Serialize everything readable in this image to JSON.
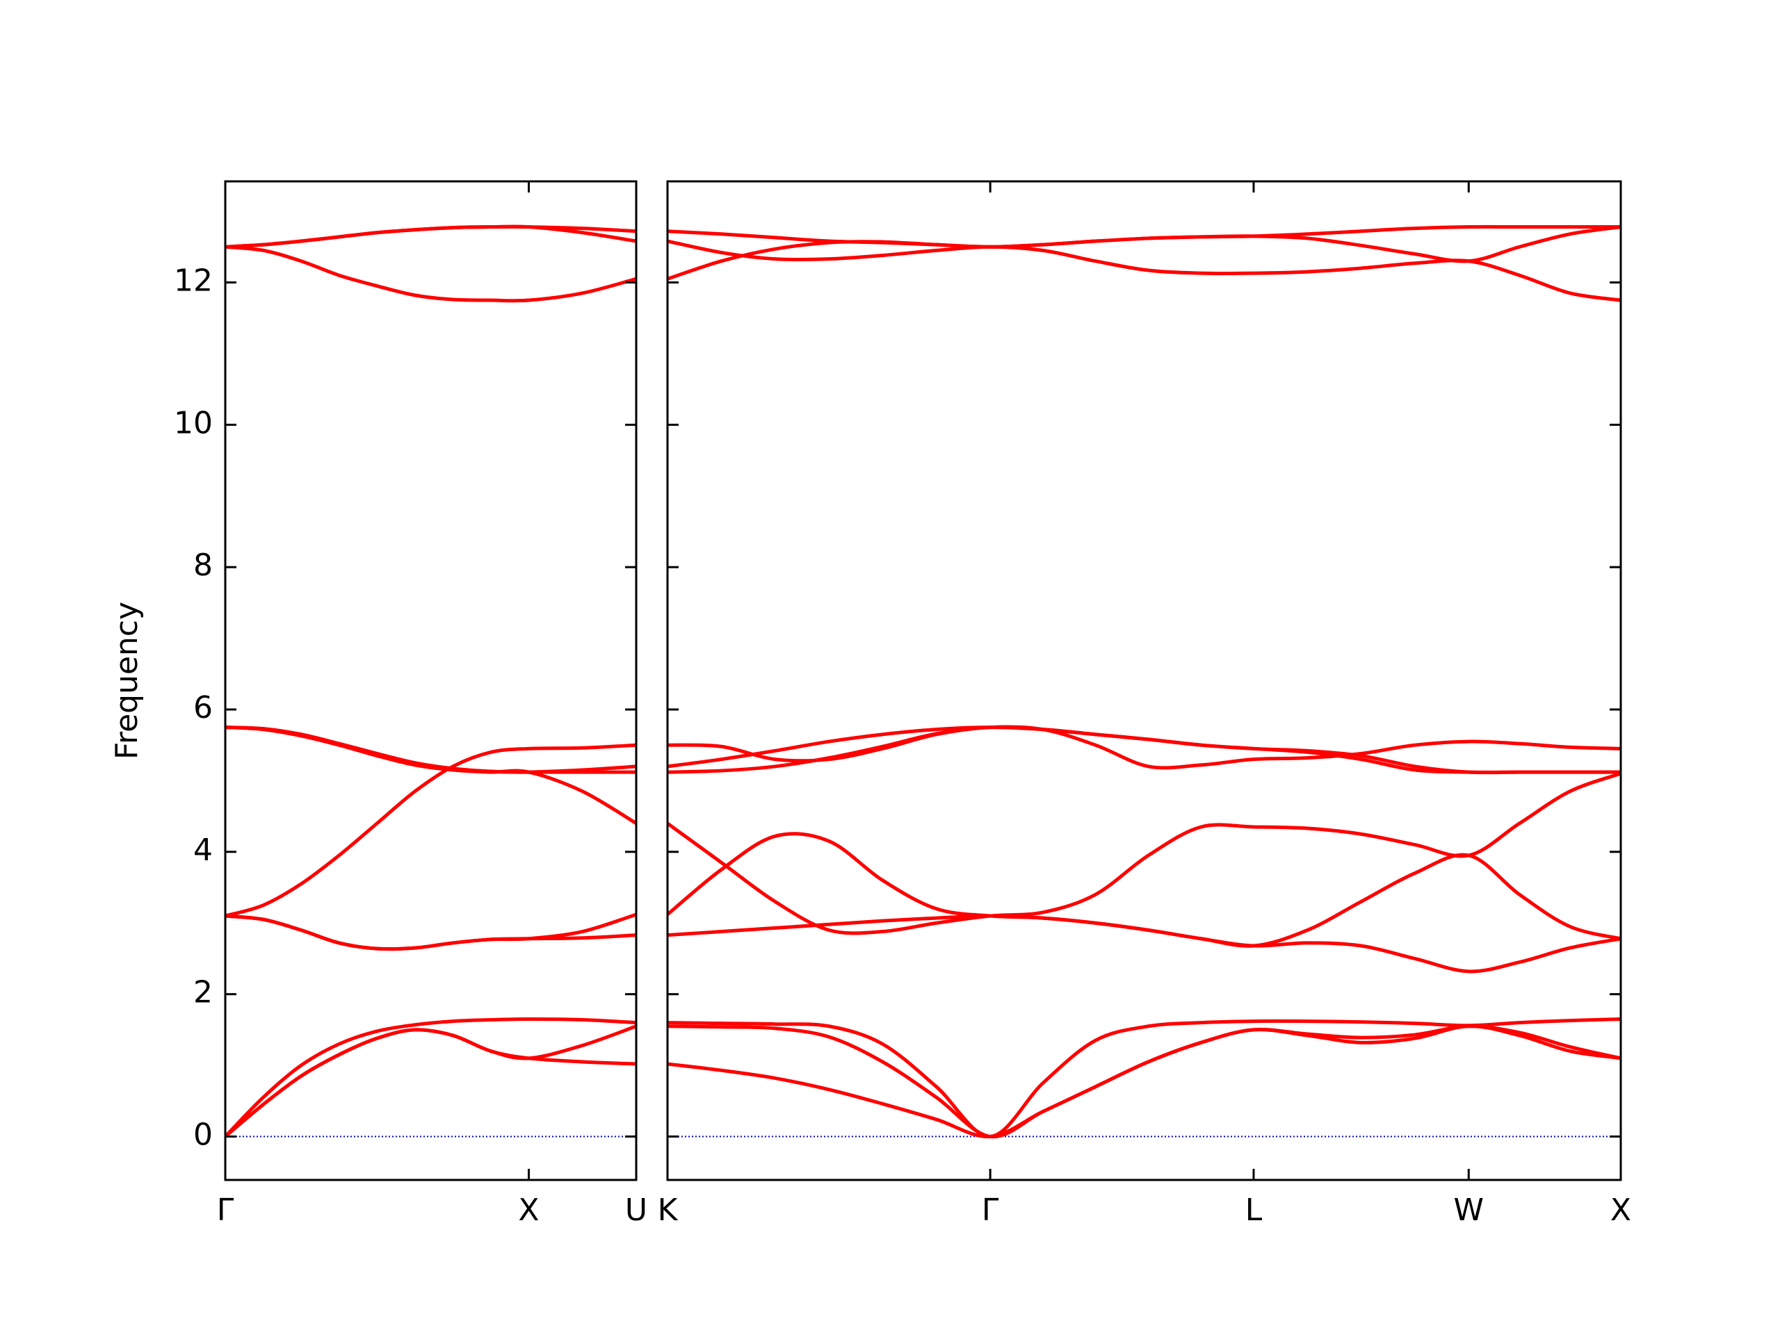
{
  "chart_data": [
    {
      "type": "line",
      "ylabel": "Frequency",
      "color": "#ff0000",
      "x": [
        0,
        0.125,
        0.25,
        0.375,
        0.5,
        0.625,
        0.75,
        0.875,
        1,
        1.177,
        1.354
      ],
      "xlim": [
        0,
        1.354
      ],
      "xticks": [
        {
          "value": 0,
          "label": "Γ"
        },
        {
          "value": 1,
          "label": "X"
        },
        {
          "value": 1.354,
          "label": "U"
        }
      ],
      "ylim": [
        -0.61,
        13.42
      ],
      "yticks": [
        0,
        2,
        4,
        6,
        8,
        10,
        12
      ],
      "ytick_labels": true,
      "zero_line": {
        "y": 0,
        "color": "#0000cc"
      },
      "series": [
        {
          "values": [
            0,
            0.45,
            0.85,
            1.15,
            1.38,
            1.5,
            1.42,
            1.2,
            1.1,
            1.05,
            1.02
          ]
        },
        {
          "values": [
            0,
            0.45,
            0.85,
            1.15,
            1.38,
            1.5,
            1.42,
            1.2,
            1.1,
            1.28,
            1.55
          ]
        },
        {
          "values": [
            0,
            0.55,
            1.0,
            1.3,
            1.48,
            1.57,
            1.62,
            1.64,
            1.65,
            1.64,
            1.6
          ]
        },
        {
          "values": [
            3.1,
            3.05,
            2.9,
            2.72,
            2.64,
            2.65,
            2.72,
            2.77,
            2.78,
            2.79,
            2.83
          ]
        },
        {
          "values": [
            3.1,
            3.05,
            2.9,
            2.72,
            2.64,
            2.65,
            2.72,
            2.77,
            2.78,
            2.88,
            3.12
          ]
        },
        {
          "values": [
            3.1,
            3.25,
            3.55,
            3.95,
            4.4,
            4.85,
            5.2,
            5.4,
            5.45,
            5.46,
            5.5
          ]
        },
        {
          "values": [
            5.75,
            5.72,
            5.63,
            5.5,
            5.35,
            5.22,
            5.15,
            5.12,
            5.12,
            4.85,
            4.4
          ]
        },
        {
          "values": [
            5.75,
            5.73,
            5.65,
            5.52,
            5.38,
            5.25,
            5.17,
            5.13,
            5.12,
            5.12,
            5.12
          ]
        },
        {
          "values": [
            5.75,
            5.73,
            5.65,
            5.52,
            5.38,
            5.25,
            5.17,
            5.13,
            5.12,
            5.15,
            5.2
          ]
        },
        {
          "values": [
            12.5,
            12.45,
            12.3,
            12.1,
            11.95,
            11.82,
            11.76,
            11.75,
            11.75,
            11.85,
            12.05
          ]
        },
        {
          "values": [
            12.5,
            12.53,
            12.58,
            12.64,
            12.7,
            12.74,
            12.77,
            12.78,
            12.78,
            12.7,
            12.58
          ]
        },
        {
          "values": [
            12.5,
            12.53,
            12.58,
            12.64,
            12.7,
            12.74,
            12.77,
            12.78,
            12.78,
            12.76,
            12.72
          ]
        }
      ]
    },
    {
      "type": "line",
      "color": "#ff0000",
      "x": [
        1.354,
        1.531,
        1.708,
        1.885,
        2.061,
        2.238,
        2.415,
        2.588,
        2.761,
        2.935,
        3.108,
        3.281,
        3.458,
        3.634,
        3.811,
        3.988,
        4.155,
        4.321,
        4.488
      ],
      "xlim": [
        1.354,
        4.488
      ],
      "xticks": [
        {
          "value": 1.354,
          "label": "K"
        },
        {
          "value": 2.415,
          "label": "Γ"
        },
        {
          "value": 3.281,
          "label": "L"
        },
        {
          "value": 3.988,
          "label": "W"
        },
        {
          "value": 4.488,
          "label": "X"
        }
      ],
      "ylim": [
        -0.61,
        13.42
      ],
      "yticks": [
        0,
        2,
        4,
        6,
        8,
        10,
        12
      ],
      "ytick_labels": false,
      "zero_line": {
        "y": 0,
        "color": "#0000cc"
      },
      "series": [
        {
          "values": [
            1.02,
            0.93,
            0.82,
            0.66,
            0.46,
            0.24,
            0,
            0.35,
            0.7,
            1.05,
            1.32,
            1.5,
            1.42,
            1.32,
            1.38,
            1.55,
            1.42,
            1.2,
            1.1
          ]
        },
        {
          "values": [
            1.55,
            1.54,
            1.52,
            1.4,
            1.05,
            0.55,
            0,
            0.35,
            0.7,
            1.05,
            1.32,
            1.5,
            1.44,
            1.39,
            1.43,
            1.55,
            1.46,
            1.26,
            1.1
          ]
        },
        {
          "values": [
            1.6,
            1.59,
            1.58,
            1.55,
            1.3,
            0.7,
            0,
            0.75,
            1.35,
            1.55,
            1.6,
            1.62,
            1.62,
            1.61,
            1.59,
            1.56,
            1.6,
            1.63,
            1.65
          ]
        },
        {
          "values": [
            2.83,
            2.88,
            2.93,
            2.98,
            3.03,
            3.07,
            3.1,
            3.07,
            3.0,
            2.9,
            2.78,
            2.68,
            2.72,
            2.68,
            2.5,
            2.32,
            2.45,
            2.65,
            2.78
          ]
        },
        {
          "values": [
            3.12,
            3.75,
            4.22,
            4.15,
            3.6,
            3.2,
            3.1,
            3.07,
            3.0,
            2.9,
            2.78,
            2.68,
            2.9,
            3.3,
            3.7,
            3.95,
            3.4,
            2.95,
            2.78
          ]
        },
        {
          "values": [
            4.4,
            3.85,
            3.3,
            2.9,
            2.88,
            3.0,
            3.1,
            3.15,
            3.4,
            3.95,
            4.35,
            4.35,
            4.33,
            4.25,
            4.1,
            3.95,
            4.4,
            4.85,
            5.1
          ]
        },
        {
          "values": [
            5.5,
            5.48,
            5.3,
            5.3,
            5.45,
            5.65,
            5.75,
            5.72,
            5.5,
            5.2,
            5.22,
            5.3,
            5.32,
            5.38,
            5.5,
            5.55,
            5.52,
            5.47,
            5.45
          ]
        },
        {
          "values": [
            5.12,
            5.14,
            5.2,
            5.32,
            5.48,
            5.66,
            5.75,
            5.72,
            5.65,
            5.58,
            5.5,
            5.45,
            5.42,
            5.35,
            5.2,
            5.12,
            5.12,
            5.12,
            5.12
          ]
        },
        {
          "values": [
            5.2,
            5.3,
            5.42,
            5.55,
            5.65,
            5.72,
            5.75,
            5.72,
            5.65,
            5.58,
            5.5,
            5.45,
            5.4,
            5.3,
            5.15,
            5.12,
            5.12,
            5.12,
            5.12
          ]
        },
        {
          "values": [
            12.05,
            12.3,
            12.47,
            12.56,
            12.57,
            12.53,
            12.5,
            12.53,
            12.58,
            12.62,
            12.64,
            12.65,
            12.68,
            12.72,
            12.76,
            12.78,
            12.78,
            12.78,
            12.78
          ]
        },
        {
          "values": [
            12.58,
            12.42,
            12.33,
            12.33,
            12.38,
            12.45,
            12.5,
            12.45,
            12.3,
            12.17,
            12.13,
            12.13,
            12.15,
            12.2,
            12.27,
            12.3,
            12.1,
            11.85,
            11.75
          ]
        },
        {
          "values": [
            12.72,
            12.68,
            12.63,
            12.58,
            12.56,
            12.53,
            12.5,
            12.53,
            12.58,
            12.62,
            12.64,
            12.65,
            12.62,
            12.52,
            12.4,
            12.3,
            12.5,
            12.68,
            12.78
          ]
        }
      ]
    }
  ]
}
